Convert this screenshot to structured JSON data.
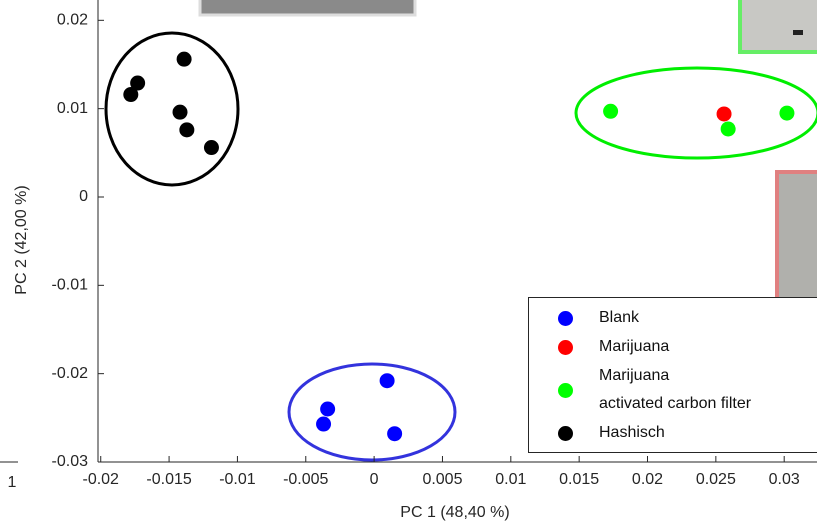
{
  "chart_data": {
    "type": "scatter",
    "x_label": "PC 1 (48,40 %)",
    "y_label": "PC 2 (42,00 %)",
    "annotations": [
      "1"
    ],
    "xlim": [
      -0.0202,
      0.0324
    ],
    "ylim": [
      -0.03,
      0.0223
    ],
    "xticks": [
      -0.02,
      -0.015,
      -0.01,
      -0.005,
      0,
      0.005,
      0.01,
      0.015,
      0.02,
      0.025,
      0.03
    ],
    "yticks": [
      -0.03,
      -0.02,
      -0.01,
      0,
      0.01,
      0.02
    ],
    "series": [
      {
        "name": "Blank",
        "color": "#0000ff",
        "x": [
          0.00095,
          -0.0034,
          -0.0037,
          0.0015
        ],
        "values": [
          -0.0208,
          -0.024,
          -0.0257,
          -0.0268
        ]
      },
      {
        "name": "Marijuana",
        "color": "#ff0000",
        "x": [
          0.0256
        ],
        "values": [
          0.0094
        ]
      },
      {
        "name": "Marijuana\nactivated carbon filter",
        "color": "#00ff00",
        "x": [
          0.0173,
          0.0259,
          0.0302
        ],
        "values": [
          0.0097,
          0.0077,
          0.0095
        ]
      },
      {
        "name": "Hashisch",
        "color": "#000000",
        "x": [
          -0.0173,
          -0.0178,
          -0.0139,
          -0.0142,
          -0.0137,
          -0.0119
        ],
        "values": [
          0.0129,
          0.0116,
          0.0156,
          0.0096,
          0.0076,
          0.0056
        ]
      }
    ]
  }
}
